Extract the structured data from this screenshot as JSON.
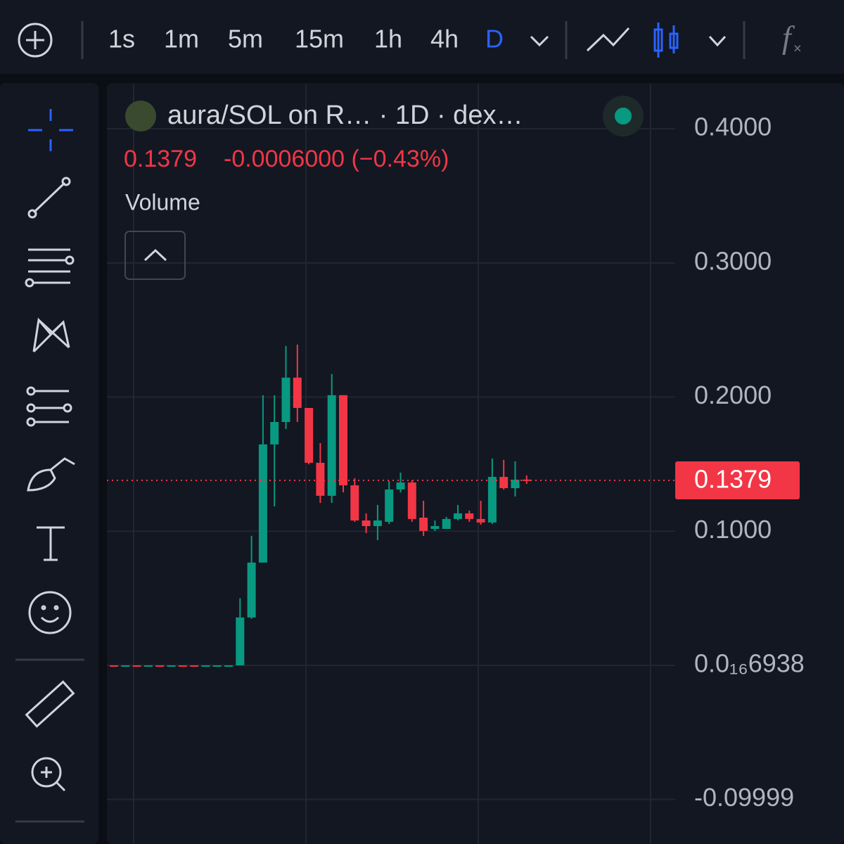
{
  "toolbar": {
    "intervals": [
      "1s",
      "1m",
      "5m",
      "15m",
      "1h",
      "4h",
      "D"
    ],
    "active": "D"
  },
  "legend": {
    "symbol": "aura/SOL on R… · 1D · dex…",
    "price": "0.1379",
    "change": "-0.0006000 (−0.43%)",
    "indicator": "Volume"
  },
  "chart_data": {
    "type": "candlestick",
    "up_color": "#089981",
    "down_color": "#f23645",
    "ylim": [
      -0.1332,
      0.4331
    ],
    "yticks": [
      {
        "value": 0.4,
        "label": "0.4000"
      },
      {
        "value": 0.3,
        "label": "0.3000"
      },
      {
        "value": 0.2,
        "label": "0.2000"
      },
      {
        "value": 0.1,
        "label": "0.1000"
      },
      {
        "value": 6.938e-17,
        "label": "0.0₁₆6938"
      },
      -0.09999
    ],
    "grid": true,
    "open": [
      7e-17,
      6.9e-17,
      7e-17,
      6.9e-17,
      7e-17,
      6.9e-17,
      7e-17,
      7e-17,
      6.9e-17,
      6.9e-17,
      6.9e-17,
      6.9e-17,
      0.0357,
      0.0766,
      0.1647,
      0.1814,
      0.2145,
      0.1919,
      0.151,
      0.1264,
      0.2014,
      0.1342,
      0.108,
      0.1038,
      0.107,
      0.1311,
      0.1363,
      0.1101,
      0.1017,
      0.1017,
      0.1091,
      0.1133,
      0.1091,
      0.1065,
      0.1405,
      0.1321,
      0.1385
    ],
    "high": [
      7e-17,
      7e-17,
      7e-17,
      7e-17,
      7e-17,
      7e-17,
      7e-17,
      7e-17,
      7e-17,
      7e-17,
      7e-17,
      0.05,
      0.0965,
      0.2014,
      0.2014,
      0.2381,
      0.2391,
      0.1919,
      0.1657,
      0.2171,
      0.2014,
      0.1395,
      0.1133,
      0.1196,
      0.1374,
      0.1437,
      0.1378,
      0.1227,
      0.108,
      0.1107,
      0.1196,
      0.1154,
      0.1227,
      0.1542,
      0.1532,
      0.1521,
      0.1416
    ],
    "low": [
      6.9e-17,
      6.9e-17,
      6.9e-17,
      6.9e-17,
      6.9e-17,
      6.9e-17,
      6.9e-17,
      6.9e-17,
      6.9e-17,
      6.9e-17,
      6.9e-17,
      6.9e-17,
      0.0347,
      0.0766,
      0.1185,
      0.1762,
      0.1814,
      0.1498,
      0.1211,
      0.1211,
      0.129,
      0.107,
      0.0986,
      0.0933,
      0.1054,
      0.1289,
      0.107,
      0.0965,
      0.1002,
      0.1017,
      0.1081,
      0.107,
      0.1049,
      0.1054,
      0.131,
      0.1259,
      0.1353
    ],
    "close": [
      6.9e-17,
      7e-17,
      6.9e-17,
      7e-17,
      6.9e-17,
      7e-17,
      6.9e-17,
      6.9e-17,
      7e-17,
      7e-17,
      7e-17,
      0.0357,
      0.0766,
      0.1647,
      0.1814,
      0.2145,
      0.1919,
      0.151,
      0.1264,
      0.2014,
      0.1342,
      0.108,
      0.1038,
      0.108,
      0.1311,
      0.1363,
      0.1091,
      0.1002,
      0.1038,
      0.1091,
      0.1133,
      0.1091,
      0.1065,
      0.1405,
      0.1321,
      0.1384,
      0.1379
    ]
  }
}
